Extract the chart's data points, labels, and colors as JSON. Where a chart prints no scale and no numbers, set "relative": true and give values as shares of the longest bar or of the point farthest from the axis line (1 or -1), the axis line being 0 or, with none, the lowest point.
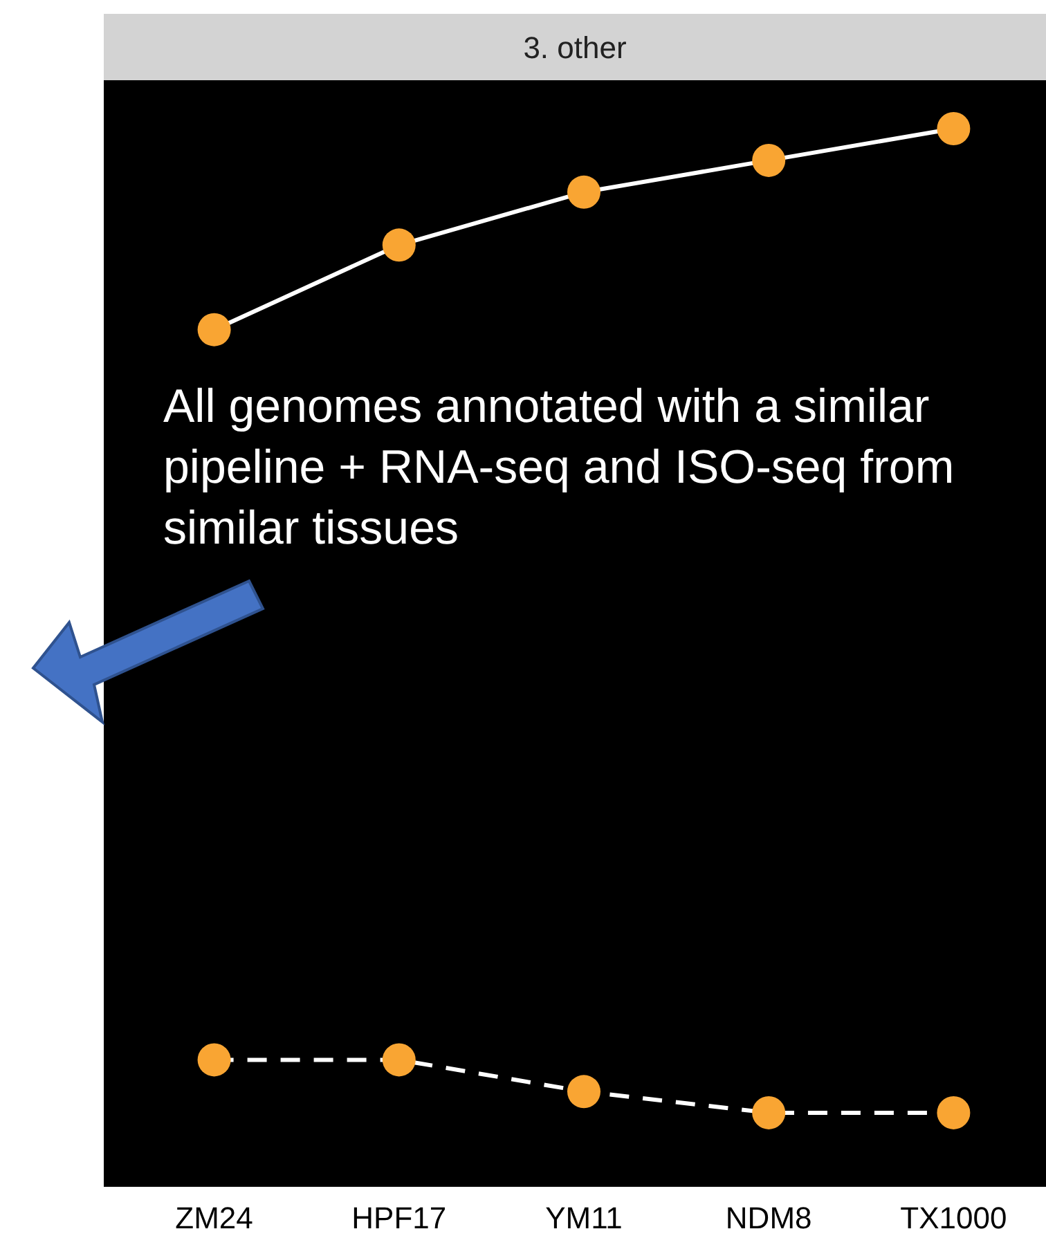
{
  "chart_data": {
    "type": "line",
    "title": "3. other",
    "relative": true,
    "categories": [
      "ZM24",
      "HPF17",
      "YM11",
      "NDM8",
      "TX1000"
    ],
    "marker": "circle",
    "legend": false,
    "series": [
      {
        "color": "#f9a533",
        "values": [
          0.81,
          0.89,
          0.94,
          0.97,
          1
        ],
        "line_style": "solid"
      },
      {
        "color": "#f9a533",
        "values": [
          0.12,
          0.12,
          0.09,
          0.07,
          0.07
        ],
        "line_style": "dashed"
      }
    ],
    "annotations": [
      "All genomes annotated with a similar pipeline + RNA-seq and ISO-seq from similar tissues"
    ]
  }
}
